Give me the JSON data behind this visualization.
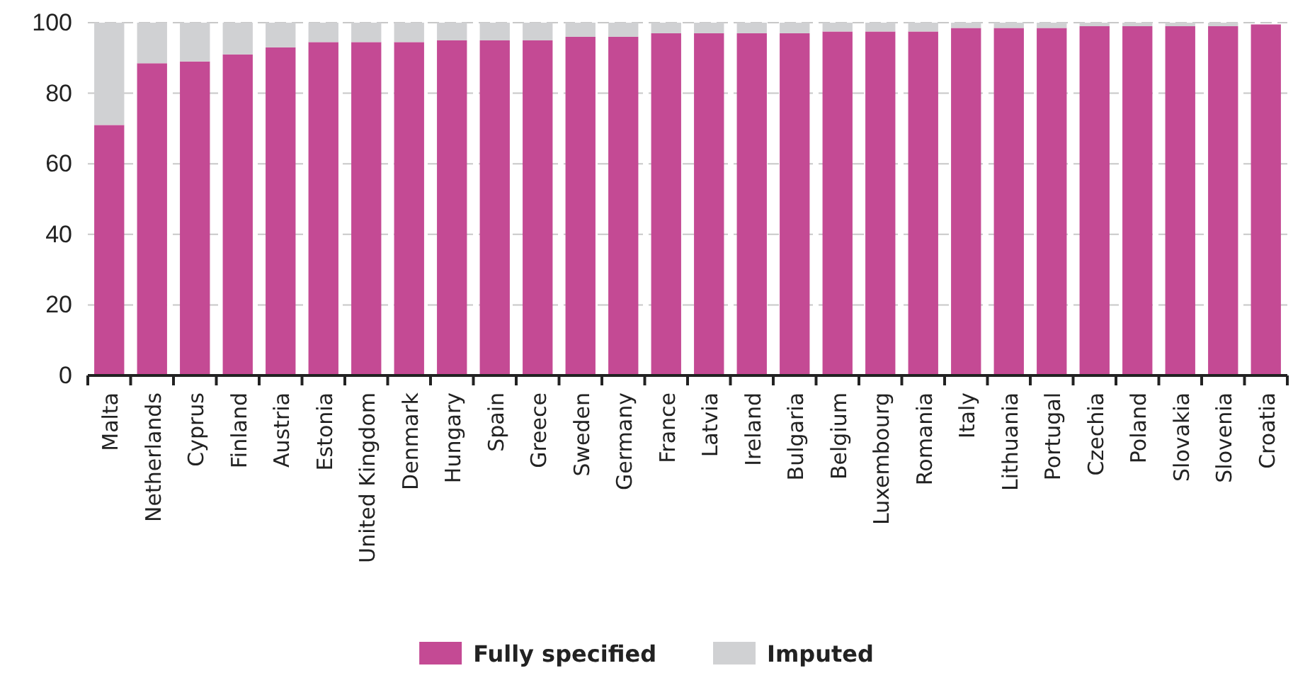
{
  "chart_data": {
    "type": "bar",
    "stacked": true,
    "categories": [
      "Malta",
      "Netherlands",
      "Cyprus",
      "Finland",
      "Austria",
      "Estonia",
      "United Kingdom",
      "Denmark",
      "Hungary",
      "Spain",
      "Greece",
      "Sweden",
      "Germany",
      "France",
      "Latvia",
      "Ireland",
      "Bulgaria",
      "Belgium",
      "Luxembourg",
      "Romania",
      "Italy",
      "Lithuania",
      "Portugal",
      "Czechia",
      "Poland",
      "Slovakia",
      "Slovenia",
      "Croatia"
    ],
    "series": [
      {
        "name": "Fully specified",
        "color": "#c44a94",
        "values": [
          71,
          88.5,
          89,
          91,
          93,
          94.5,
          94.5,
          94.5,
          95,
          95,
          95,
          96,
          96,
          97,
          97,
          97,
          97,
          97.5,
          97.5,
          97.5,
          98.5,
          98.5,
          98.5,
          99,
          99,
          99,
          99,
          99.5
        ]
      },
      {
        "name": "Imputed",
        "color": "#d0d1d3",
        "values": [
          29,
          11.5,
          11,
          9,
          7,
          5.5,
          5.5,
          5.5,
          5,
          5,
          5,
          4,
          4,
          3,
          3,
          3,
          3,
          2.5,
          2.5,
          2.5,
          1.5,
          1.5,
          1.5,
          1,
          1,
          1,
          1,
          null
        ]
      }
    ],
    "ylim": [
      0,
      100
    ],
    "yticks": [
      0,
      20,
      40,
      60,
      80,
      100
    ],
    "grid": "y",
    "legend": "bottom"
  }
}
